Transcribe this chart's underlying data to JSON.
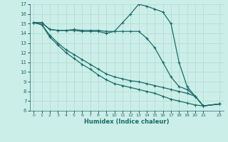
{
  "xlabel": "Humidex (Indice chaleur)",
  "background_color": "#cceee8",
  "grid_color": "#aaddcc",
  "line_color": "#1a6b6b",
  "xlim": [
    -0.5,
    23.5
  ],
  "ylim": [
    6,
    17
  ],
  "xticks": [
    0,
    1,
    2,
    3,
    4,
    5,
    6,
    7,
    8,
    9,
    10,
    11,
    12,
    13,
    14,
    15,
    16,
    17,
    18,
    19,
    20,
    21,
    23
  ],
  "yticks": [
    6,
    7,
    8,
    9,
    10,
    11,
    12,
    13,
    14,
    15,
    16,
    17
  ],
  "series": [
    [
      15.1,
      15.1,
      14.4,
      14.3,
      14.3,
      14.4,
      14.3,
      14.3,
      14.3,
      14.2,
      14.2,
      15.1,
      16.0,
      17.0,
      16.8,
      16.5,
      16.2,
      15.0,
      11.0,
      8.5,
      7.5,
      6.5,
      6.7
    ],
    [
      15.1,
      15.1,
      14.4,
      14.3,
      14.3,
      14.3,
      14.2,
      14.2,
      14.2,
      14.0,
      14.2,
      14.2,
      14.2,
      14.2,
      13.5,
      12.5,
      11.0,
      9.5,
      8.5,
      8.2,
      7.5,
      6.5,
      6.7
    ],
    [
      15.1,
      14.9,
      13.8,
      13.0,
      12.3,
      11.8,
      11.3,
      10.8,
      10.3,
      9.8,
      9.5,
      9.3,
      9.1,
      9.0,
      8.8,
      8.6,
      8.4,
      8.2,
      8.0,
      7.8,
      7.5,
      6.5,
      6.7
    ],
    [
      15.1,
      14.9,
      13.6,
      12.8,
      12.0,
      11.4,
      10.8,
      10.3,
      9.7,
      9.2,
      8.8,
      8.6,
      8.4,
      8.2,
      8.0,
      7.8,
      7.5,
      7.2,
      7.0,
      6.8,
      6.6,
      6.5,
      6.7
    ]
  ],
  "x_data": [
    0,
    1,
    2,
    3,
    4,
    5,
    6,
    7,
    8,
    9,
    10,
    11,
    12,
    13,
    14,
    15,
    16,
    17,
    18,
    19,
    20,
    21,
    23
  ]
}
